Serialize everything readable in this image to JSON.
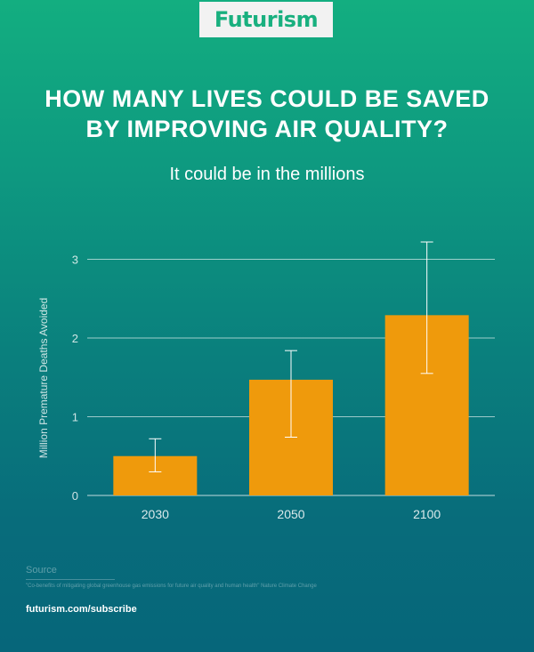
{
  "brand": {
    "logo_text": "Futurism"
  },
  "header": {
    "headline_line1": "HOW MANY LIVES COULD BE SAVED",
    "headline_line2": "BY IMPROVING AIR QUALITY?",
    "subtitle": "It could be in the millions"
  },
  "colors": {
    "bar": "#ef9a0c",
    "error_bar": "#ffffff",
    "grid": "#ffffff",
    "logo": "#19b07f"
  },
  "chart_data": {
    "type": "bar",
    "title": "HOW MANY LIVES COULD BE SAVED BY IMPROVING AIR QUALITY?",
    "subtitle": "It could be in the millions",
    "xlabel": "",
    "ylabel": "Million Premature Deaths Avoided",
    "categories": [
      "2030",
      "2050",
      "2100"
    ],
    "values": [
      0.5,
      1.47,
      2.29
    ],
    "error_low": [
      0.3,
      0.74,
      1.55
    ],
    "error_high": [
      0.72,
      1.84,
      3.22
    ],
    "ylim": [
      0,
      3.3
    ],
    "yticks": [
      0,
      1,
      2,
      3
    ],
    "ytick_labels": [
      "0",
      "1",
      "2",
      "3"
    ],
    "grid": true
  },
  "source": {
    "label": "Source",
    "text": "\"Co-benefits of mitigating global greenhouse gas emissions for future air quality and human health\" Nature Climate Change"
  },
  "footer": {
    "link": "futurism.com/subscribe"
  }
}
